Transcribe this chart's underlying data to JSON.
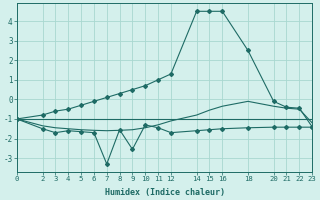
{
  "xlabel": "Humidex (Indice chaleur)",
  "background_color": "#d4f0ec",
  "grid_color": "#a8d8d0",
  "line_color": "#1e6b65",
  "xlim": [
    0,
    23
  ],
  "ylim": [
    -3.7,
    4.9
  ],
  "xticks": [
    0,
    2,
    3,
    4,
    5,
    6,
    7,
    8,
    9,
    10,
    11,
    12,
    14,
    15,
    16,
    18,
    20,
    21,
    22,
    23
  ],
  "yticks": [
    -3,
    -2,
    -1,
    0,
    1,
    2,
    3,
    4
  ],
  "series": {
    "line1_x": [
      0,
      23
    ],
    "line1_y": [
      -1.0,
      -1.0
    ],
    "line2_x": [
      0,
      2,
      3,
      4,
      5,
      6,
      7,
      8,
      9,
      10,
      11,
      12,
      14,
      15,
      16,
      18,
      20,
      21,
      22,
      23
    ],
    "line2_y": [
      -1.0,
      -1.35,
      -1.45,
      -1.5,
      -1.55,
      -1.58,
      -1.6,
      -1.58,
      -1.55,
      -1.45,
      -1.3,
      -1.1,
      -0.8,
      -0.55,
      -0.35,
      -0.1,
      -0.35,
      -0.45,
      -0.5,
      -1.2
    ],
    "line3_x": [
      0,
      2,
      3,
      4,
      5,
      6,
      7,
      8,
      9,
      10,
      11,
      12,
      14,
      15,
      16,
      18,
      20,
      21,
      22,
      23
    ],
    "line3_y": [
      -1.0,
      -1.5,
      -1.7,
      -1.6,
      -1.65,
      -1.7,
      -3.3,
      -1.55,
      -2.55,
      -1.3,
      -1.45,
      -1.7,
      -1.6,
      -1.55,
      -1.5,
      -1.45,
      -1.42,
      -1.42,
      -1.42,
      -1.42
    ],
    "line4_x": [
      0,
      2,
      3,
      4,
      5,
      6,
      7,
      8,
      9,
      10,
      11,
      12,
      14,
      15,
      16,
      18,
      20,
      21,
      22,
      23
    ],
    "line4_y": [
      -1.0,
      -0.8,
      -0.6,
      -0.5,
      -0.3,
      -0.1,
      0.1,
      0.3,
      0.5,
      0.7,
      1.0,
      1.3,
      4.5,
      4.5,
      4.5,
      2.5,
      -0.1,
      -0.4,
      -0.45,
      -1.4
    ]
  }
}
